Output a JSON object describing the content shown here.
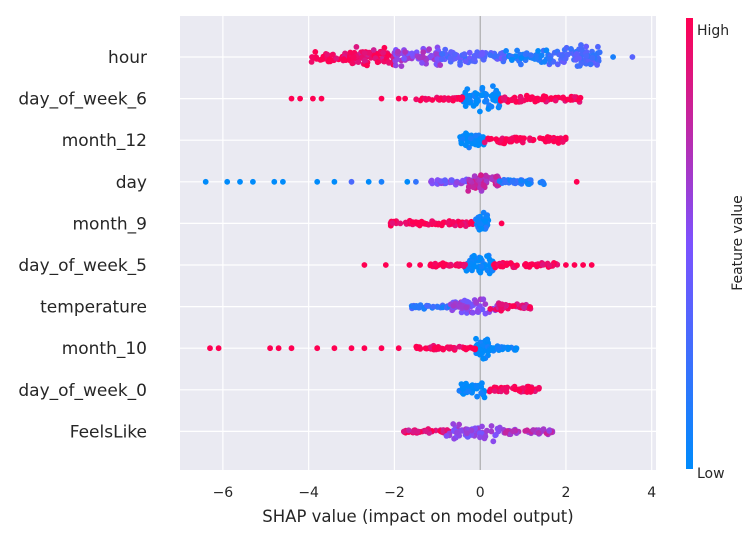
{
  "chart_data": {
    "type": "scatter",
    "subtype": "shap-beeswarm",
    "xlabel": "SHAP value (impact on model output)",
    "xlim": [
      -7,
      4.1
    ],
    "xticks": [
      -6,
      -4,
      -2,
      0,
      2,
      4
    ],
    "grid": true,
    "colorbar": {
      "label": "Feature value",
      "high_label": "High",
      "low_label": "Low",
      "low_color": "#008bfb",
      "mid_color": "#7c52ff",
      "high_color": "#ff0052"
    },
    "features": [
      {
        "name": "hour",
        "clusters": [
          {
            "from": -4.0,
            "to": -2.4,
            "spread": 0.45,
            "color": 1.0
          },
          {
            "from": -3.2,
            "to": -2.0,
            "spread": 0.9,
            "color": 0.92
          },
          {
            "from": -2.0,
            "to": -0.9,
            "spread": 0.85,
            "color": 0.6
          },
          {
            "from": -0.9,
            "to": 0.6,
            "spread": 0.6,
            "color": 0.35
          },
          {
            "from": 0.6,
            "to": 1.6,
            "spread": 0.6,
            "color": 0.12
          },
          {
            "from": 1.6,
            "to": 2.8,
            "spread": 1.0,
            "color": 0.3
          }
        ],
        "outliers": [
          [
            3.1,
            0.1
          ],
          [
            3.55,
            0.35
          ]
        ]
      },
      {
        "name": "day_of_week_6",
        "clusters": [
          {
            "from": -0.4,
            "to": 0.45,
            "spread": 1.0,
            "color": 0.0
          },
          {
            "from": -1.5,
            "to": -0.4,
            "spread": 0.18,
            "color": 1.0
          },
          {
            "from": 0.45,
            "to": 2.4,
            "spread": 0.3,
            "color": 1.0
          }
        ],
        "outliers": [
          [
            -4.4,
            1
          ],
          [
            -4.2,
            1
          ],
          [
            -3.9,
            1
          ],
          [
            -3.7,
            1
          ],
          [
            -2.3,
            1
          ],
          [
            -1.9,
            1
          ],
          [
            -1.75,
            1
          ]
        ]
      },
      {
        "name": "month_12",
        "clusters": [
          {
            "from": -0.5,
            "to": 0.1,
            "spread": 0.7,
            "color": 0.0
          },
          {
            "from": 0.1,
            "to": 2.0,
            "spread": 0.3,
            "color": 1.0
          }
        ],
        "outliers": []
      },
      {
        "name": "day",
        "clusters": [
          {
            "from": -1.2,
            "to": 0.0,
            "spread": 0.22,
            "color": 0.5
          },
          {
            "from": -0.3,
            "to": 0.45,
            "spread": 0.75,
            "color": 0.75
          },
          {
            "from": 0.45,
            "to": 1.5,
            "spread": 0.2,
            "color": 0.15
          }
        ],
        "outliers": [
          [
            -6.4,
            0
          ],
          [
            -5.9,
            0
          ],
          [
            -5.6,
            0
          ],
          [
            -5.3,
            0
          ],
          [
            -4.8,
            0
          ],
          [
            -4.6,
            0
          ],
          [
            -3.8,
            0
          ],
          [
            -3.4,
            0
          ],
          [
            -3.0,
            0.3
          ],
          [
            -2.6,
            0
          ],
          [
            -2.3,
            0.1
          ],
          [
            -1.7,
            0
          ],
          [
            -1.5,
            0.2
          ],
          [
            2.25,
            1
          ]
        ]
      },
      {
        "name": "month_9",
        "clusters": [
          {
            "from": -2.1,
            "to": -0.1,
            "spread": 0.22,
            "color": 1.0
          },
          {
            "from": -0.1,
            "to": 0.2,
            "spread": 0.85,
            "color": 0.05
          }
        ],
        "outliers": [
          [
            0.5,
            1
          ]
        ]
      },
      {
        "name": "day_of_week_5",
        "clusters": [
          {
            "from": -0.35,
            "to": 0.3,
            "spread": 0.95,
            "color": 0.0
          },
          {
            "from": -1.2,
            "to": -0.35,
            "spread": 0.2,
            "color": 1.0
          },
          {
            "from": 0.3,
            "to": 1.8,
            "spread": 0.28,
            "color": 1.0
          }
        ],
        "outliers": [
          [
            -2.7,
            1
          ],
          [
            -2.2,
            1
          ],
          [
            -1.65,
            1
          ],
          [
            -1.4,
            1
          ],
          [
            2.0,
            1
          ],
          [
            2.2,
            1
          ],
          [
            2.4,
            1
          ],
          [
            2.6,
            1
          ]
        ]
      },
      {
        "name": "temperature",
        "clusters": [
          {
            "from": -1.6,
            "to": -0.5,
            "spread": 0.2,
            "color": 0.2
          },
          {
            "from": -0.7,
            "to": 0.4,
            "spread": 0.7,
            "color": 0.55
          },
          {
            "from": 0.2,
            "to": 1.2,
            "spread": 0.3,
            "color": 0.9
          }
        ],
        "outliers": []
      },
      {
        "name": "month_10",
        "clusters": [
          {
            "from": -0.1,
            "to": 0.2,
            "spread": 0.85,
            "color": 0.0
          },
          {
            "from": 0.2,
            "to": 0.85,
            "spread": 0.22,
            "color": 0.0
          },
          {
            "from": -1.5,
            "to": -0.1,
            "spread": 0.22,
            "color": 1.0
          }
        ],
        "outliers": [
          [
            -6.3,
            1
          ],
          [
            -6.1,
            1
          ],
          [
            -4.9,
            1
          ],
          [
            -4.7,
            1
          ],
          [
            -4.4,
            1
          ],
          [
            -3.8,
            1
          ],
          [
            -3.4,
            1
          ],
          [
            -3.0,
            1
          ],
          [
            -2.7,
            1
          ],
          [
            -2.3,
            1
          ],
          [
            -1.9,
            1
          ]
        ]
      },
      {
        "name": "day_of_week_0",
        "clusters": [
          {
            "from": -0.5,
            "to": 0.15,
            "spread": 0.6,
            "color": 0.0
          },
          {
            "from": 0.15,
            "to": 1.4,
            "spread": 0.3,
            "color": 1.0
          }
        ],
        "outliers": []
      },
      {
        "name": "FeelsLike",
        "clusters": [
          {
            "from": -1.8,
            "to": -0.7,
            "spread": 0.2,
            "color": 0.9
          },
          {
            "from": -0.8,
            "to": 0.5,
            "spread": 0.7,
            "color": 0.55
          },
          {
            "from": 0.5,
            "to": 1.7,
            "spread": 0.28,
            "color": 0.7
          }
        ],
        "outliers": []
      }
    ]
  }
}
